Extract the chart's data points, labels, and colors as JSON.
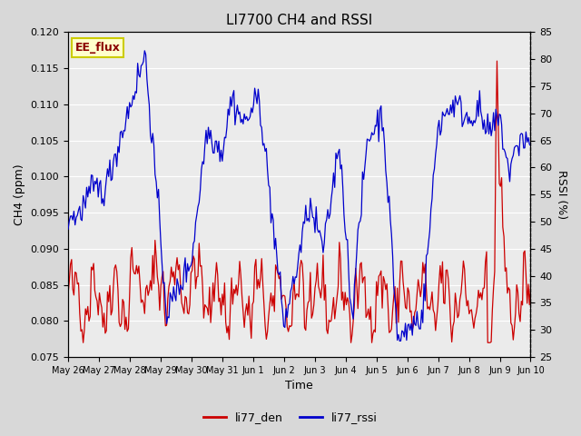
{
  "title": "LI7700 CH4 and RSSI",
  "xlabel": "Time",
  "ylabel_left": "CH4 (ppm)",
  "ylabel_right": "RSSI (%)",
  "ylim_left": [
    0.075,
    0.12
  ],
  "ylim_right": [
    25,
    85
  ],
  "yticks_left": [
    0.075,
    0.08,
    0.085,
    0.09,
    0.095,
    0.1,
    0.105,
    0.11,
    0.115,
    0.12
  ],
  "yticks_right": [
    25,
    30,
    35,
    40,
    45,
    50,
    55,
    60,
    65,
    70,
    75,
    80,
    85
  ],
  "color_ch4": "#cc0000",
  "color_rssi": "#0000cc",
  "legend_entries": [
    "li77_den",
    "li77_rssi"
  ],
  "annotation_text": "EE_flux",
  "annotation_color": "#8b0000",
  "annotation_bg": "#ffffcc",
  "annotation_border": "#cccc00",
  "figure_bg": "#d8d8d8",
  "plot_bg": "#ebebeb",
  "grid_color": "#ffffff",
  "title_fontsize": 11,
  "axis_fontsize": 9,
  "tick_fontsize": 8,
  "n_points": 400,
  "x_start": 0,
  "x_end": 15.0,
  "xtick_positions": [
    0,
    1,
    2,
    3,
    4,
    5,
    6,
    7,
    8,
    9,
    10,
    11,
    12,
    13,
    14,
    15
  ],
  "xtick_labels": [
    "May 26",
    "May 27",
    "May 28",
    "May 29",
    "May 30",
    "May 31",
    "Jun 1",
    "Jun 2",
    "Jun 3",
    "Jun 4",
    "Jun 5",
    "Jun 6",
    "Jun 7",
    "Jun 8",
    "Jun 9",
    "Jun 10"
  ]
}
